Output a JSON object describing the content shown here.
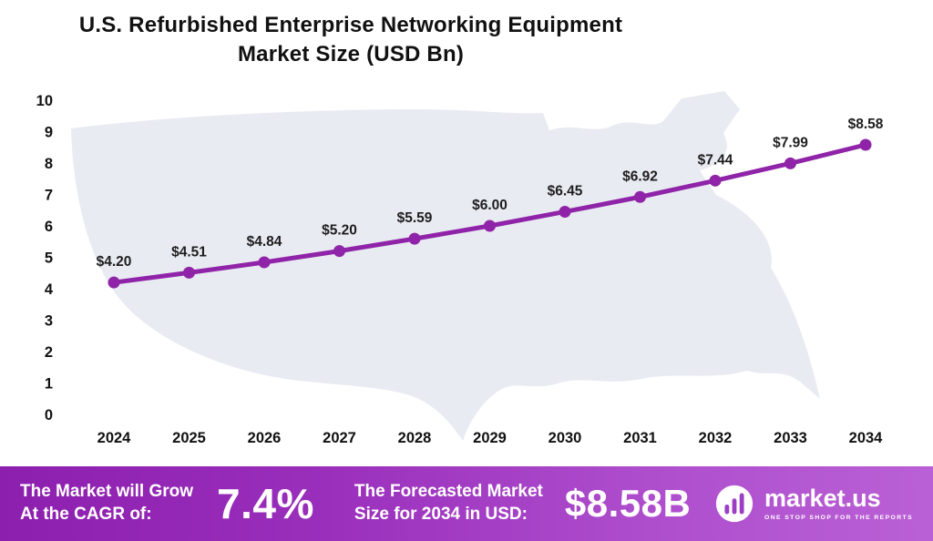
{
  "title": {
    "line1": "U.S. Refurbished Enterprise Networking Equipment",
    "line2": "Market Size (USD Bn)"
  },
  "chart_data": {
    "type": "line",
    "title": "U.S. Refurbished Enterprise Networking Equipment Market Size (USD Bn)",
    "x": [
      2024,
      2025,
      2026,
      2027,
      2028,
      2029,
      2030,
      2031,
      2032,
      2033,
      2034
    ],
    "values": [
      4.2,
      4.51,
      4.84,
      5.2,
      5.59,
      6.0,
      6.45,
      6.92,
      7.44,
      7.99,
      8.58
    ],
    "point_labels": [
      "$4.20",
      "$4.51",
      "$4.84",
      "$5.20",
      "$5.59",
      "$6.00",
      "$6.45",
      "$6.92",
      "$7.44",
      "$7.99",
      "$8.58"
    ],
    "ylim": [
      0,
      10
    ],
    "yticks": [
      0,
      1,
      2,
      3,
      4,
      5,
      6,
      7,
      8,
      9,
      10
    ],
    "grid": false,
    "legend": "none",
    "line_color": "#8f24a8",
    "marker_color": "#8f24a8",
    "label_color": "#1d1d1d",
    "axis_label_color": "#111111",
    "map_background_color": "#e9ebf2"
  },
  "banner": {
    "cagr_label_line1": "The Market will Grow",
    "cagr_label_line2": "At the CAGR of:",
    "cagr_value": "7.4%",
    "forecast_label_line1": "The Forecasted Market",
    "forecast_label_line2": "Size for 2034 in USD:",
    "forecast_value": "$8.58B",
    "logo_text": "market.us",
    "logo_tagline": "ONE STOP SHOP FOR THE REPORTS"
  }
}
